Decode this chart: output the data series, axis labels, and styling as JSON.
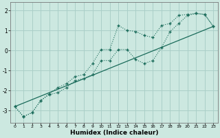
{
  "xlabel": "Humidex (Indice chaleur)",
  "bg_color": "#cce8e0",
  "line_color": "#1a6b5a",
  "grid_color": "#aacfc8",
  "xlim": [
    -0.5,
    23.5
  ],
  "ylim": [
    -3.6,
    2.4
  ],
  "x_ticks": [
    0,
    1,
    2,
    3,
    4,
    5,
    6,
    7,
    8,
    9,
    10,
    11,
    12,
    13,
    14,
    15,
    16,
    17,
    18,
    19,
    20,
    21,
    22,
    23
  ],
  "y_ticks": [
    -3,
    -2,
    -1,
    0,
    1,
    2
  ],
  "series1_x": [
    0,
    1,
    2,
    3,
    4,
    5,
    6,
    7,
    8,
    9,
    10,
    11,
    12,
    13,
    14,
    15,
    16,
    17,
    18,
    19,
    20,
    21,
    22,
    23
  ],
  "series1_y": [
    -2.8,
    -3.3,
    -3.1,
    -2.5,
    -2.15,
    -1.85,
    -1.65,
    -1.3,
    -1.2,
    -0.65,
    0.05,
    0.05,
    1.25,
    1.0,
    0.95,
    0.75,
    0.65,
    1.25,
    1.35,
    1.75,
    1.8,
    1.85,
    1.8,
    1.2
  ],
  "series2_x": [
    0,
    1,
    2,
    3,
    4,
    5,
    6,
    7,
    8,
    9,
    10,
    11,
    12,
    13,
    14,
    15,
    16,
    17,
    18,
    19,
    20,
    21,
    22,
    23
  ],
  "series2_y": [
    -2.8,
    -3.3,
    -3.1,
    -2.5,
    -2.2,
    -2.1,
    -1.85,
    -1.5,
    -1.4,
    -1.2,
    -0.5,
    -0.5,
    0.05,
    0.05,
    -0.45,
    -0.65,
    -0.5,
    0.15,
    0.95,
    1.35,
    1.75,
    1.85,
    1.8,
    1.2
  ],
  "series3_x": [
    0,
    23
  ],
  "series3_y": [
    -2.8,
    1.2
  ]
}
